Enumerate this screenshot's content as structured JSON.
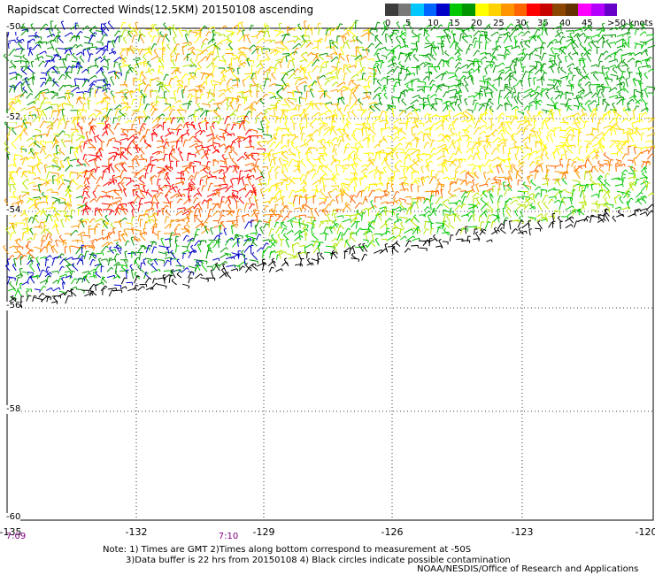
{
  "title": "Rapidscat Corrected Winds(12.5KM) 20150108 ascending",
  "legend": {
    "colors": [
      "#3c3c3c",
      "#787878",
      "#00c8ff",
      "#0064ff",
      "#0000c8",
      "#00c800",
      "#009600",
      "#ffff00",
      "#ffd200",
      "#ff9600",
      "#ff6400",
      "#ff0000",
      "#c80000",
      "#8c4600",
      "#643200",
      "#ff00ff",
      "#b400ff",
      "#6400c8"
    ],
    "labels": [
      "0",
      "5",
      "10",
      "15",
      "20",
      "25",
      "30",
      "35",
      "40",
      "45",
      ">50 knots"
    ]
  },
  "map": {
    "lat_labels": [
      "-50",
      "-52",
      "-54",
      "-56",
      "-58",
      "-60"
    ],
    "lon_labels": [
      "-135",
      "-132",
      "-129",
      "-126",
      "-123",
      "-120"
    ],
    "time_labels": [
      "7:09",
      "7:10"
    ],
    "wind_palette": [
      "#0000c8",
      "#009600",
      "#00c800",
      "#b4e600",
      "#ffff00",
      "#ffd200",
      "#ff9600",
      "#ff6400",
      "#ff0000",
      "#000000"
    ]
  },
  "notes": {
    "line1": "Note: 1) Times are GMT 2)Times along bottom correspond to measurement at -50S",
    "line2": "3)Data buffer is 22 hrs from 20150108 4) Black circles indicate possible contamination"
  },
  "credit": "NOAA/NESDIS/Office of Research and Applications"
}
